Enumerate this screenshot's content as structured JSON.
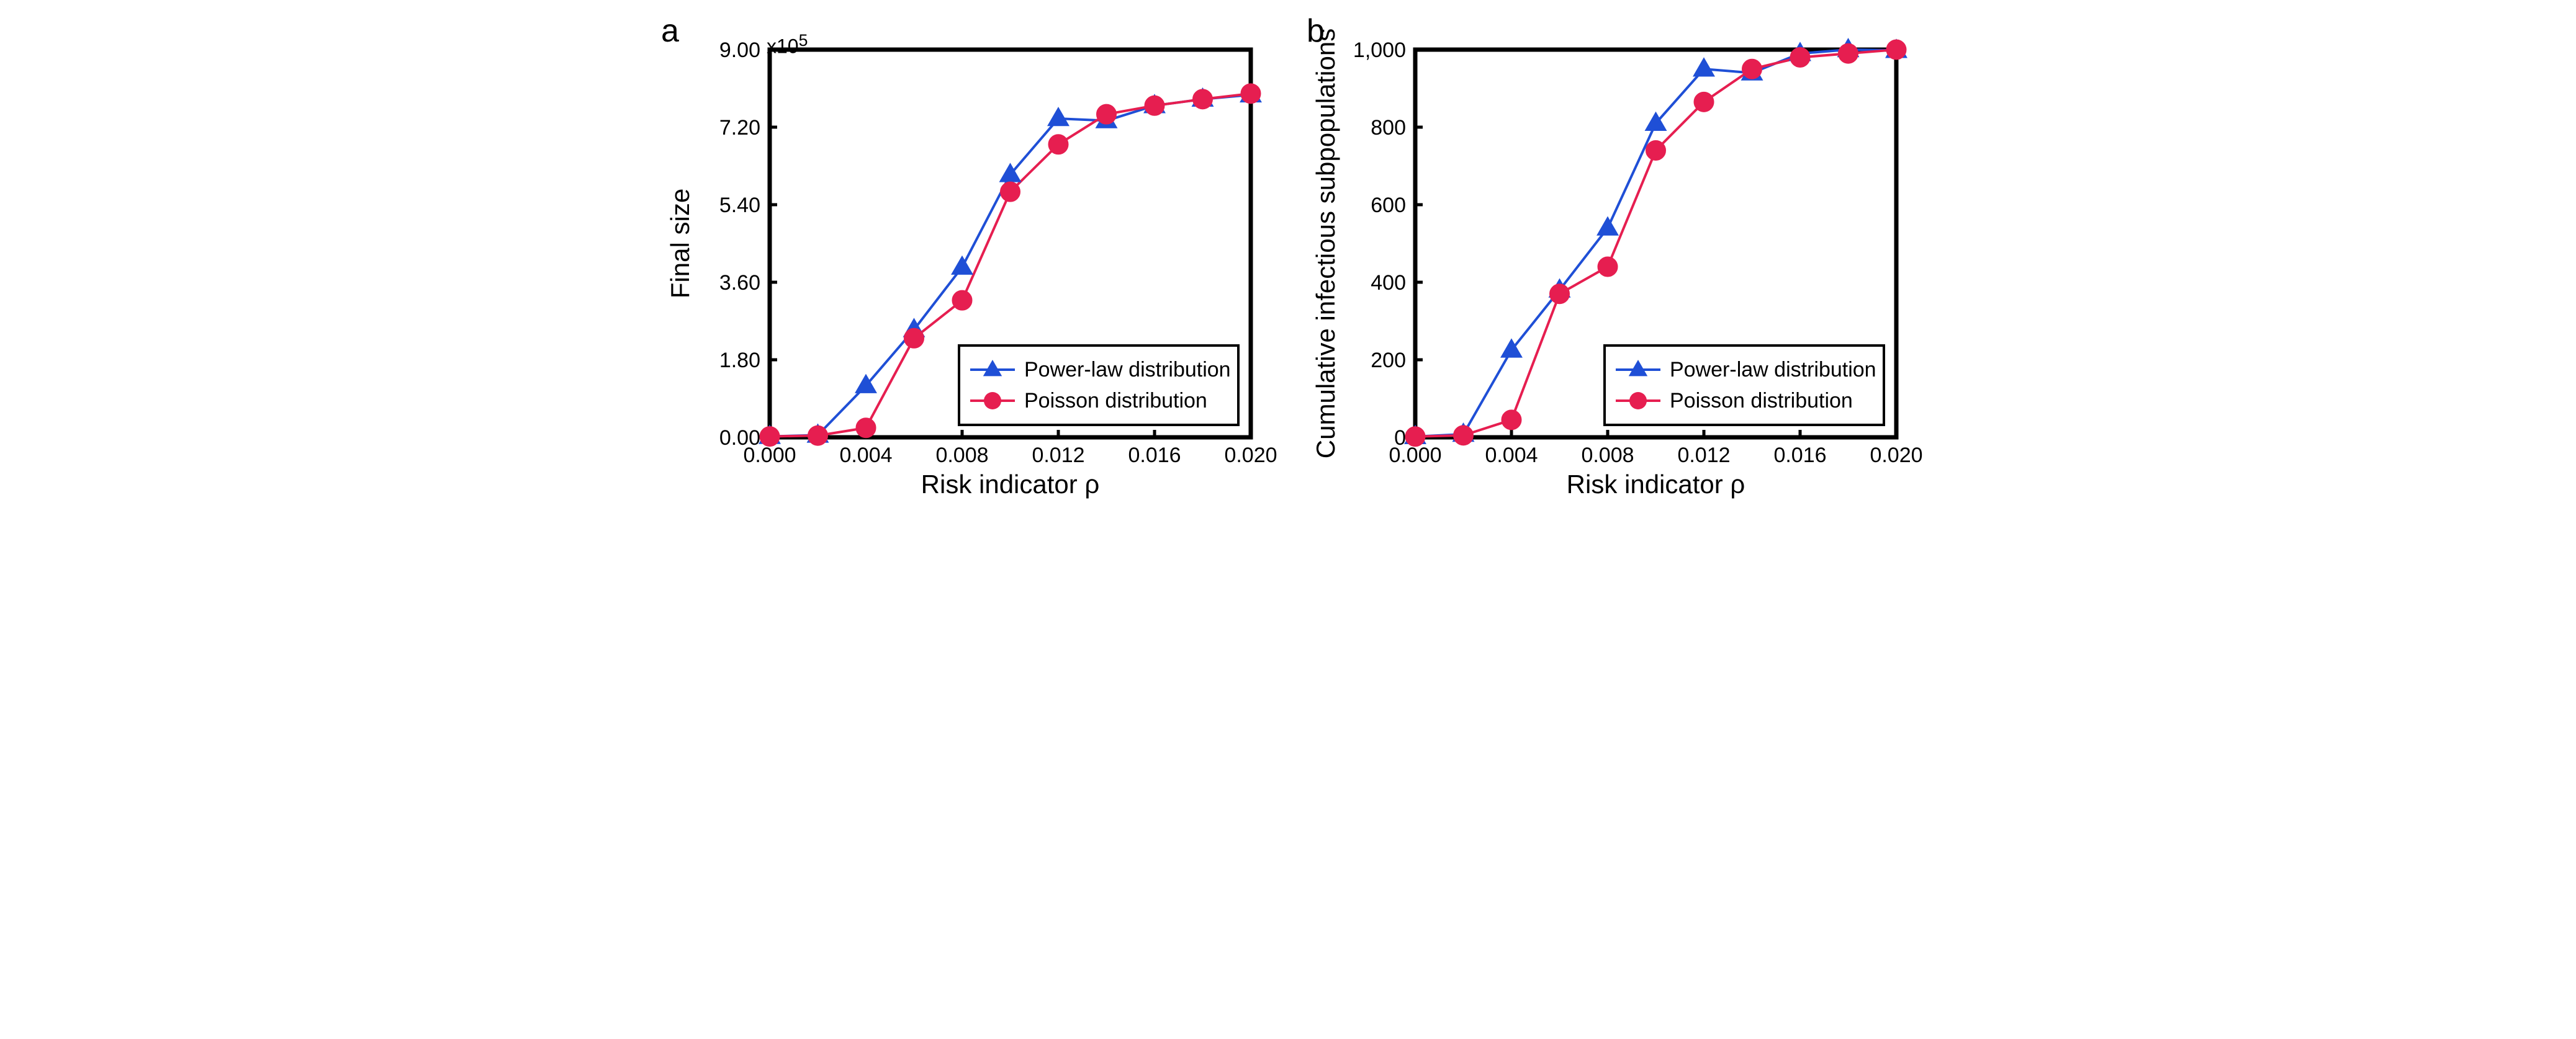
{
  "figure": {
    "background_color": "#ffffff",
    "panels": [
      {
        "id": "a",
        "letter": "a",
        "type": "line-scatter",
        "xlabel": "Risk indicator ρ",
        "ylabel": "Final size",
        "exponent_label": "x10",
        "exponent_sup": "5",
        "x": [
          0.0,
          0.002,
          0.004,
          0.006,
          0.008,
          0.01,
          0.012,
          0.014,
          0.016,
          0.018,
          0.02
        ],
        "xlim": [
          0.0,
          0.02
        ],
        "xticks": [
          0.0,
          0.004,
          0.008,
          0.012,
          0.016,
          0.02
        ],
        "xticklabels": [
          "0.000",
          "0.004",
          "0.008",
          "0.012",
          "0.016",
          "0.020"
        ],
        "ylim": [
          0.0,
          9.0
        ],
        "yticks": [
          0.0,
          1.8,
          3.6,
          5.4,
          7.2,
          9.0
        ],
        "yticklabels": [
          "0.00",
          "1.80",
          "3.60",
          "5.40",
          "7.20",
          "9.00"
        ],
        "series": [
          {
            "name": "Power-law distribution",
            "marker": "triangle",
            "color": "#1f4fd6",
            "line_width": 4,
            "marker_size": 18,
            "y": [
              0.02,
              0.05,
              1.2,
              2.5,
              3.95,
              6.1,
              7.4,
              7.35,
              7.7,
              7.85,
              7.95
            ]
          },
          {
            "name": "Poisson distribution",
            "marker": "circle",
            "color": "#e61e50",
            "line_width": 4,
            "marker_size": 16,
            "y": [
              0.02,
              0.04,
              0.22,
              2.3,
              3.18,
              5.7,
              6.8,
              7.5,
              7.7,
              7.85,
              7.98
            ]
          }
        ],
        "legend": {
          "position": "lower-right",
          "border_color": "#000000",
          "border_width": 4,
          "fontsize": 34,
          "items": [
            "Power-law distribution",
            "Poisson distribution"
          ]
        },
        "axis": {
          "border_color": "#000000",
          "border_width": 7,
          "tick_length": 12,
          "tick_width": 5,
          "ticklabel_fontsize": 34,
          "label_fontsize": 42
        }
      },
      {
        "id": "b",
        "letter": "b",
        "type": "line-scatter",
        "xlabel": "Risk indicator ρ",
        "ylabel": "Cumulative infectious subpopulations",
        "x": [
          0.0,
          0.002,
          0.004,
          0.006,
          0.008,
          0.01,
          0.012,
          0.014,
          0.016,
          0.018,
          0.02
        ],
        "xlim": [
          0.0,
          0.02
        ],
        "xticks": [
          0.0,
          0.004,
          0.008,
          0.012,
          0.016,
          0.02
        ],
        "xticklabels": [
          "0.000",
          "0.004",
          "0.008",
          "0.012",
          "0.016",
          "0.020"
        ],
        "ylim": [
          0,
          1000
        ],
        "yticks": [
          0,
          200,
          400,
          600,
          800,
          1000
        ],
        "yticklabels": [
          "0",
          "200",
          "400",
          "600",
          "800",
          "1,000"
        ],
        "series": [
          {
            "name": "Power-law distribution",
            "marker": "triangle",
            "color": "#1f4fd6",
            "line_width": 4,
            "marker_size": 18,
            "y": [
              2,
              8,
              225,
              380,
              540,
              810,
              950,
              940,
              990,
              1000,
              998
            ]
          },
          {
            "name": "Poisson distribution",
            "marker": "circle",
            "color": "#e61e50",
            "line_width": 4,
            "marker_size": 16,
            "y": [
              2,
              5,
              45,
              370,
              440,
              740,
              865,
              950,
              980,
              990,
              1000
            ]
          }
        ],
        "legend": {
          "position": "lower-right",
          "border_color": "#000000",
          "border_width": 4,
          "fontsize": 34,
          "items": [
            "Power-law distribution",
            "Poisson distribution"
          ]
        },
        "axis": {
          "border_color": "#000000",
          "border_width": 7,
          "tick_length": 12,
          "tick_width": 5,
          "ticklabel_fontsize": 34,
          "label_fontsize": 42
        }
      }
    ]
  }
}
